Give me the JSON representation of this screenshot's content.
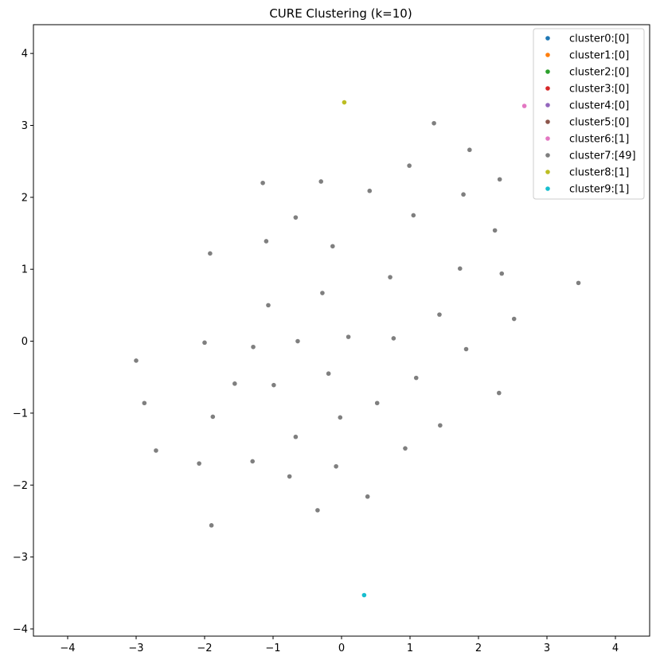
{
  "chart_data": {
    "type": "scatter",
    "title": "CURE Clustering (k=10)",
    "xlabel": "",
    "ylabel": "",
    "xlim": [
      -4.5,
      4.5
    ],
    "ylim": [
      -4.1,
      4.4
    ],
    "xticks": [
      -4,
      -3,
      -2,
      -1,
      0,
      1,
      2,
      3,
      4
    ],
    "yticks": [
      -4,
      -3,
      -2,
      -1,
      0,
      1,
      2,
      3,
      4
    ],
    "grid": false,
    "legend_position": "top-right",
    "series": [
      {
        "name": "cluster0:[0]",
        "color": "#1f77b4",
        "points": []
      },
      {
        "name": "cluster1:[0]",
        "color": "#ff7f0e",
        "points": []
      },
      {
        "name": "cluster2:[0]",
        "color": "#2ca02c",
        "points": []
      },
      {
        "name": "cluster3:[0]",
        "color": "#d62728",
        "points": []
      },
      {
        "name": "cluster4:[0]",
        "color": "#9467bd",
        "points": []
      },
      {
        "name": "cluster5:[0]",
        "color": "#8c564b",
        "points": []
      },
      {
        "name": "cluster6:[1]",
        "color": "#e377c2",
        "points": [
          [
            2.67,
            3.27
          ]
        ]
      },
      {
        "name": "cluster7:[49]",
        "color": "#7f7f7f",
        "points": [
          [
            1.35,
            3.03
          ],
          [
            1.87,
            2.66
          ],
          [
            0.99,
            2.44
          ],
          [
            2.31,
            2.25
          ],
          [
            -1.15,
            2.2
          ],
          [
            -0.3,
            2.22
          ],
          [
            0.41,
            2.09
          ],
          [
            1.78,
            2.04
          ],
          [
            -0.67,
            1.72
          ],
          [
            1.05,
            1.75
          ],
          [
            2.24,
            1.54
          ],
          [
            -1.1,
            1.39
          ],
          [
            -0.13,
            1.32
          ],
          [
            -1.92,
            1.22
          ],
          [
            1.73,
            1.01
          ],
          [
            2.34,
            0.94
          ],
          [
            0.71,
            0.89
          ],
          [
            3.46,
            0.81
          ],
          [
            -0.28,
            0.67
          ],
          [
            -1.07,
            0.5
          ],
          [
            1.43,
            0.37
          ],
          [
            2.52,
            0.31
          ],
          [
            0.1,
            0.06
          ],
          [
            0.76,
            0.04
          ],
          [
            -0.64,
            0.0
          ],
          [
            -2.0,
            -0.02
          ],
          [
            -1.29,
            -0.08
          ],
          [
            1.82,
            -0.11
          ],
          [
            -3.0,
            -0.27
          ],
          [
            -0.19,
            -0.45
          ],
          [
            1.09,
            -0.51
          ],
          [
            -1.56,
            -0.59
          ],
          [
            -0.99,
            -0.61
          ],
          [
            2.3,
            -0.72
          ],
          [
            -2.88,
            -0.86
          ],
          [
            0.52,
            -0.86
          ],
          [
            -1.88,
            -1.05
          ],
          [
            -0.02,
            -1.06
          ],
          [
            1.44,
            -1.17
          ],
          [
            -0.67,
            -1.33
          ],
          [
            0.93,
            -1.49
          ],
          [
            -2.71,
            -1.52
          ],
          [
            -1.3,
            -1.67
          ],
          [
            -2.08,
            -1.7
          ],
          [
            -0.08,
            -1.74
          ],
          [
            -0.76,
            -1.88
          ],
          [
            0.38,
            -2.16
          ],
          [
            -0.35,
            -2.35
          ],
          [
            -1.9,
            -2.56
          ]
        ]
      },
      {
        "name": "cluster8:[1]",
        "color": "#bcbd22",
        "points": [
          [
            0.04,
            3.32
          ]
        ]
      },
      {
        "name": "cluster9:[1]",
        "color": "#17becf",
        "points": [
          [
            0.33,
            -3.53
          ]
        ]
      }
    ]
  }
}
